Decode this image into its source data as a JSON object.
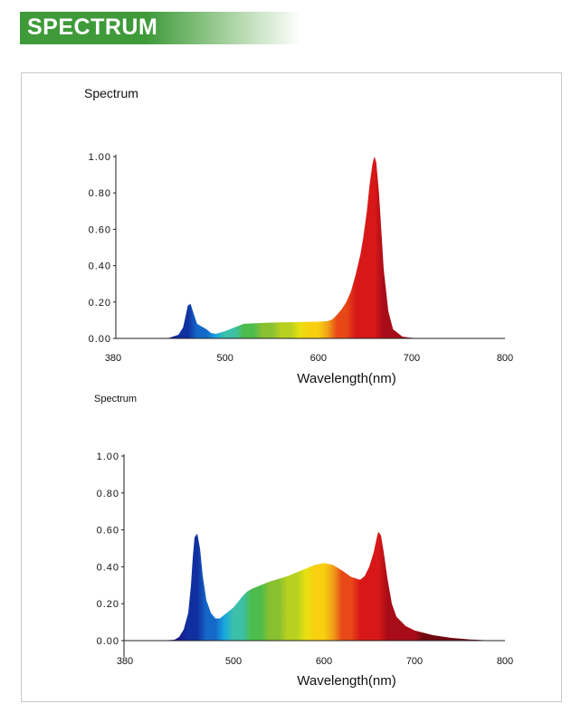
{
  "header": {
    "title": "SPECTRUM"
  },
  "chart_data": [
    {
      "type": "area",
      "title": "Spectrum",
      "xlabel": "Wavelength(nm)",
      "ylabel": "",
      "xlim": [
        380,
        800
      ],
      "ylim": [
        0,
        1.0
      ],
      "x_tick_labels": [
        "380",
        "500",
        "600",
        "700",
        "800"
      ],
      "y_tick_labels": [
        "0.00",
        "0.20",
        "0.40",
        "0.60",
        "0.80",
        "1.00"
      ],
      "series": [
        {
          "name": "Spectrum",
          "x": [
            420,
            440,
            450,
            455,
            458,
            460,
            463,
            466,
            470,
            475,
            480,
            485,
            490,
            500,
            510,
            520,
            540,
            560,
            580,
            600,
            610,
            615,
            620,
            625,
            630,
            635,
            640,
            645,
            648,
            652,
            655,
            658,
            660,
            662,
            665,
            668,
            670,
            675,
            680,
            690,
            700,
            720,
            800
          ],
          "values": [
            0.0,
            0.003,
            0.02,
            0.06,
            0.13,
            0.18,
            0.19,
            0.14,
            0.08,
            0.065,
            0.05,
            0.03,
            0.025,
            0.04,
            0.06,
            0.08,
            0.085,
            0.088,
            0.09,
            0.092,
            0.095,
            0.105,
            0.13,
            0.16,
            0.2,
            0.26,
            0.35,
            0.46,
            0.55,
            0.7,
            0.85,
            0.96,
            1.0,
            0.97,
            0.8,
            0.55,
            0.38,
            0.15,
            0.05,
            0.01,
            0.003,
            0.0,
            0.0
          ]
        }
      ]
    },
    {
      "type": "area",
      "title": "Spectrum",
      "xlabel": "Wavelength(nm)",
      "ylabel": "",
      "xlim": [
        380,
        800
      ],
      "ylim": [
        0,
        1.0
      ],
      "x_tick_labels": [
        "380",
        "500",
        "600",
        "700",
        "800"
      ],
      "y_tick_labels": [
        "0.00",
        "0.20",
        "0.40",
        "0.60",
        "0.80",
        "1.00"
      ],
      "series": [
        {
          "name": "Spectrum",
          "x": [
            420,
            435,
            440,
            445,
            450,
            453,
            455,
            457,
            460,
            463,
            466,
            470,
            475,
            480,
            485,
            490,
            495,
            500,
            505,
            510,
            515,
            520,
            530,
            540,
            550,
            560,
            570,
            580,
            590,
            600,
            610,
            620,
            630,
            640,
            645,
            650,
            655,
            658,
            660,
            663,
            666,
            670,
            675,
            680,
            690,
            700,
            720,
            740,
            760,
            780,
            800
          ],
          "values": [
            0.0,
            0.005,
            0.02,
            0.06,
            0.15,
            0.3,
            0.45,
            0.56,
            0.58,
            0.5,
            0.35,
            0.22,
            0.15,
            0.12,
            0.12,
            0.14,
            0.16,
            0.18,
            0.21,
            0.24,
            0.265,
            0.28,
            0.3,
            0.32,
            0.335,
            0.35,
            0.37,
            0.39,
            0.41,
            0.42,
            0.41,
            0.38,
            0.345,
            0.33,
            0.35,
            0.4,
            0.48,
            0.55,
            0.59,
            0.57,
            0.48,
            0.34,
            0.2,
            0.13,
            0.08,
            0.055,
            0.03,
            0.015,
            0.007,
            0.002,
            0.0
          ]
        }
      ]
    }
  ]
}
